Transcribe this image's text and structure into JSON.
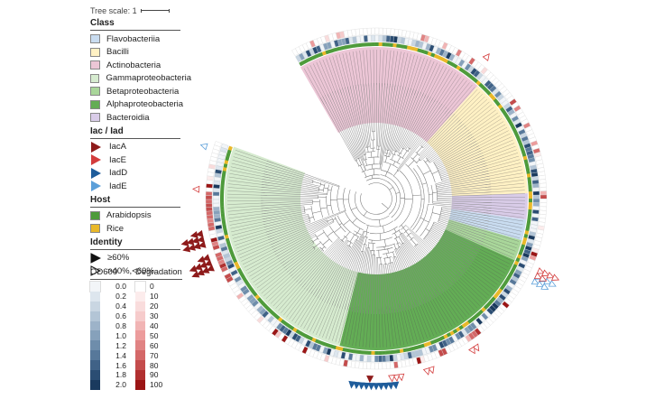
{
  "tree_scale": {
    "label": "Tree scale: 1"
  },
  "legend": {
    "class_title": "Class",
    "classes": [
      {
        "label": "Flavobacteriia",
        "color": "#c9dcf0"
      },
      {
        "label": "Bacilli",
        "color": "#fff1c4"
      },
      {
        "label": "Actinobacteria",
        "color": "#ecc6d6"
      },
      {
        "label": "Gammaproteobacteria",
        "color": "#d6ebcf"
      },
      {
        "label": "Betaproteobacteria",
        "color": "#a9d69a"
      },
      {
        "label": "Alphaproteobacteria",
        "color": "#63ad55"
      },
      {
        "label": "Bacteroidia",
        "color": "#d9cce8"
      }
    ],
    "iac_title": "Iac / Iad",
    "iac": [
      {
        "label": "IacA",
        "color": "#8e1b1b"
      },
      {
        "label": "IacE",
        "color": "#d33c3c"
      },
      {
        "label": "IadD",
        "color": "#1f5d9b"
      },
      {
        "label": "IadE",
        "color": "#5b9fd9"
      }
    ],
    "host_title": "Host",
    "hosts": [
      {
        "label": "Arabidopsis",
        "color": "#4e9b3b"
      },
      {
        "label": "Rice",
        "color": "#e9b829"
      }
    ],
    "identity_title": "Identity",
    "identity": [
      {
        "label": "≥60%",
        "style": "filled"
      },
      {
        "label": ">40%,<60%",
        "style": "open"
      }
    ]
  },
  "od_scale": {
    "title": "OD600",
    "values": [
      "0.0",
      "0.2",
      "0.4",
      "0.6",
      "0.8",
      "1.0",
      "1.2",
      "1.4",
      "1.6",
      "1.8",
      "2.0"
    ],
    "colors": [
      "#f2f5f8",
      "#dde6ee",
      "#c9d6e2",
      "#b3c5d6",
      "#9db3c9",
      "#86a1bb",
      "#6e8dab",
      "#57789a",
      "#406287",
      "#2b4d73",
      "#1a3a5e"
    ]
  },
  "degradation_scale": {
    "title": "Degradation",
    "values": [
      "0",
      "10",
      "20",
      "30",
      "40",
      "50",
      "60",
      "70",
      "80",
      "90",
      "100"
    ],
    "colors": [
      "#ffffff",
      "#fcecec",
      "#f9dcdc",
      "#f6cbcb",
      "#f1b4b4",
      "#ec9c9c",
      "#e08383",
      "#d46868",
      "#c44c4c",
      "#b13030",
      "#9b1515"
    ]
  },
  "sectors": [
    {
      "class": "Actinobacteria",
      "start": -120,
      "end": -48,
      "color": "#ecc6d6"
    },
    {
      "class": "Bacilli",
      "start": -48,
      "end": -2,
      "color": "#fff1c4"
    },
    {
      "class": "Bacteroidia",
      "start": -2,
      "end": 8,
      "color": "#d9cce8"
    },
    {
      "class": "Flavobacteriia",
      "start": 8,
      "end": 16,
      "color": "#c9dcf0"
    },
    {
      "class": "Betaproteobacteria",
      "start": 16,
      "end": 24,
      "color": "#a9d69a"
    },
    {
      "class": "Alphaproteobacteria",
      "start": 24,
      "end": 104,
      "color": "#63ad55"
    },
    {
      "class": "Gammaproteobacteria",
      "start": 104,
      "end": 200,
      "color": "#d6ebcf"
    }
  ]
}
